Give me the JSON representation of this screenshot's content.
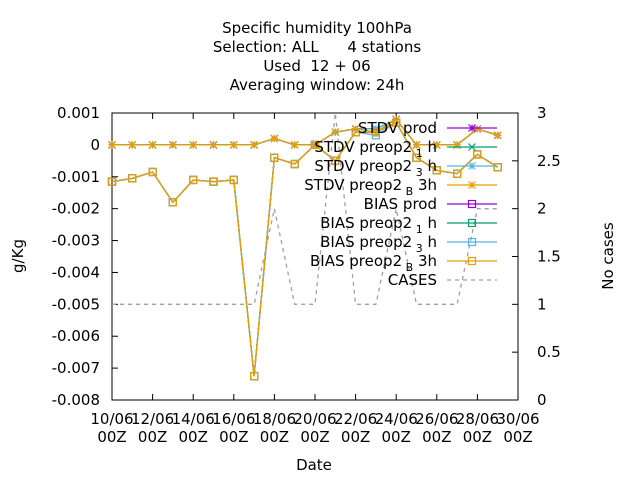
{
  "chart_data": {
    "type": "line",
    "title": [
      "Specific humidity 100hPa",
      "Selection: ALL      4 stations",
      "Used  12 + 06",
      "Averaging window: 24h"
    ],
    "xlabel": "Date",
    "ylabel": "g/Kg",
    "y2label": "No cases",
    "ylim": [
      -0.008,
      0.001
    ],
    "y2lim": [
      0,
      3
    ],
    "yticks": [
      "0.001",
      "0",
      "-0.001",
      "-0.002",
      "-0.003",
      "-0.004",
      "-0.005",
      "-0.006",
      "-0.007",
      "-0.008"
    ],
    "y2ticks": [
      "3",
      "2.5",
      "2",
      "1.5",
      "1",
      "0.5",
      "0"
    ],
    "xticks": [
      "10/06\n00Z",
      "12/06\n00Z",
      "14/06\n00Z",
      "16/06\n00Z",
      "18/06\n00Z",
      "20/06\n00Z",
      "22/06\n00Z",
      "24/06\n00Z",
      "26/06\n00Z",
      "28/06\n00Z",
      "30/06\n00Z"
    ],
    "x": [
      "10/06",
      "11/06",
      "12/06",
      "13/06",
      "14/06",
      "15/06",
      "16/06",
      "17/06",
      "18/06",
      "19/06",
      "20/06",
      "21/06",
      "22/06",
      "23/06",
      "24/06",
      "25/06",
      "26/06",
      "27/06",
      "28/06",
      "29/06"
    ],
    "legend_position": "top-right",
    "grid": false,
    "series": [
      {
        "name": "STDV prod",
        "axis": "y1",
        "color": "#9400d3",
        "marker": "star",
        "values": [
          0,
          0,
          0,
          0,
          0,
          0,
          0,
          0,
          0.0002,
          0,
          0,
          0.0004,
          0.0005,
          0.0005,
          0.0008,
          0,
          0,
          0,
          0.0005,
          0.0003
        ]
      },
      {
        "name": "STDV preop2 1 h",
        "axis": "y1",
        "color": "#009e73",
        "marker": "x",
        "values": [
          0,
          0,
          0,
          0,
          0,
          0,
          0,
          0,
          0.0002,
          0,
          0,
          0.0004,
          0.0005,
          0.0005,
          0.0008,
          0,
          0,
          0,
          0.0005,
          0.0003
        ]
      },
      {
        "name": "STDV preop2 3 h",
        "axis": "y1",
        "color": "#56b4e9",
        "marker": "star",
        "values": [
          0,
          0,
          0,
          0,
          0,
          0,
          0,
          0,
          0.0002,
          0,
          0,
          0.0004,
          0.0005,
          0.0005,
          0.0008,
          0,
          0,
          0,
          0.0005,
          0.0003
        ]
      },
      {
        "name": "STDV preop2 B 3h",
        "axis": "y1",
        "color": "#e69f00",
        "marker": "star",
        "values": [
          0,
          0,
          0,
          0,
          0,
          0,
          0,
          0,
          0.0002,
          0,
          0,
          0.0004,
          0.0005,
          0.0004,
          0.0008,
          0,
          0,
          0,
          0.0005,
          0.0003
        ]
      },
      {
        "name": "BIAS prod",
        "axis": "y1",
        "color": "#9400d3",
        "marker": "square",
        "values": [
          -0.00115,
          -0.00105,
          -0.00085,
          -0.0018,
          -0.0011,
          -0.00115,
          -0.0011,
          -0.00725,
          -0.0004,
          -0.0006,
          0,
          -0.0005,
          0.0004,
          0.0004,
          0.0007,
          -0.0004,
          -0.0008,
          -0.0009,
          -0.0003,
          -0.0007
        ]
      },
      {
        "name": "BIAS preop2 1 h",
        "axis": "y1",
        "color": "#009e73",
        "marker": "square",
        "values": [
          -0.00115,
          -0.00105,
          -0.00085,
          -0.0018,
          -0.0011,
          -0.00115,
          -0.0011,
          -0.00725,
          -0.0004,
          -0.0006,
          0,
          -0.0005,
          0.0004,
          0.0004,
          0.0007,
          -0.0004,
          -0.0008,
          -0.0009,
          -0.0003,
          -0.0007
        ]
      },
      {
        "name": "BIAS preop2 3 h",
        "axis": "y1",
        "color": "#56b4e9",
        "marker": "square",
        "values": [
          -0.00115,
          -0.00105,
          -0.00085,
          -0.0018,
          -0.0011,
          -0.00115,
          -0.0011,
          -0.00725,
          -0.0004,
          -0.0006,
          0,
          -0.0005,
          0.0004,
          0.0003,
          0.0007,
          -0.0004,
          -0.0008,
          -0.0009,
          -0.0003,
          -0.0007
        ]
      },
      {
        "name": "BIAS preop2 B 3h",
        "axis": "y1",
        "color": "#e69f00",
        "marker": "square",
        "values": [
          -0.00115,
          -0.00105,
          -0.00085,
          -0.0018,
          -0.0011,
          -0.00115,
          -0.0011,
          -0.00725,
          -0.0004,
          -0.0006,
          0,
          -0.0005,
          0.0004,
          0.0004,
          0.0007,
          -0.0004,
          -0.0008,
          -0.0009,
          -0.0003,
          -0.0007
        ]
      },
      {
        "name": "CASES",
        "axis": "y2",
        "color": "#a0a0a0",
        "marker": "none",
        "dash": true,
        "values": [
          1,
          1,
          1,
          1,
          1,
          1,
          1,
          1,
          2,
          1,
          1,
          3,
          1,
          1,
          2,
          1,
          1,
          1,
          2,
          2
        ]
      }
    ]
  }
}
